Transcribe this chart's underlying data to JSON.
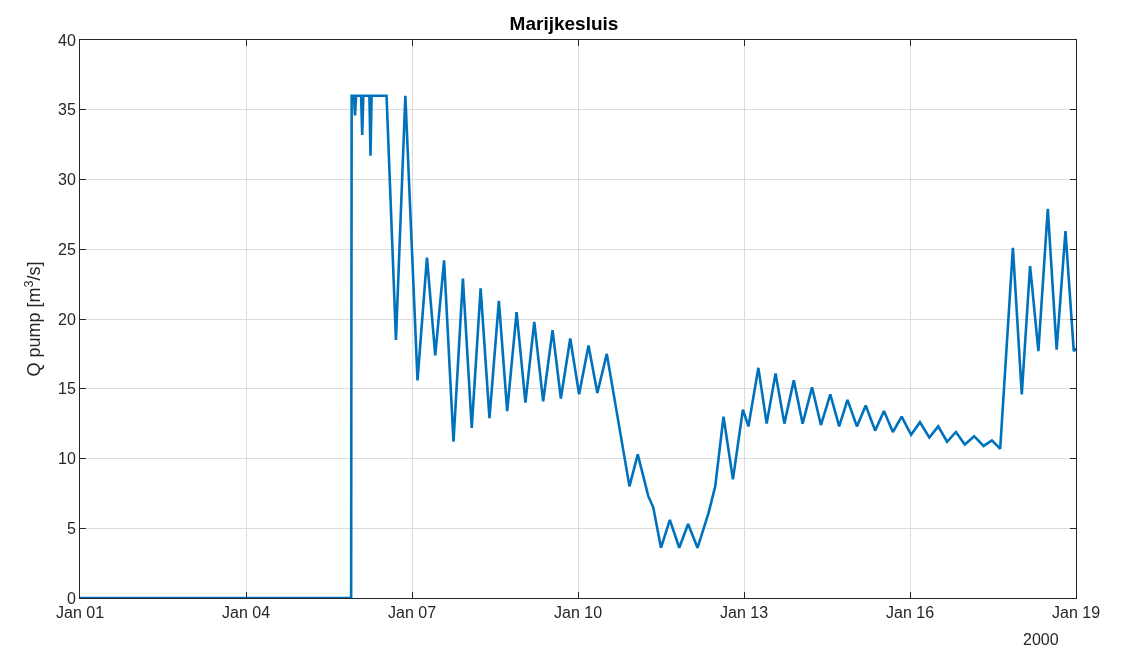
{
  "chart_data": {
    "type": "line",
    "title": "Marijkesluis",
    "ylabel": "Q pump [m$^{3}$/s]",
    "annotations": [
      "2000"
    ],
    "x": [
      "2000-01-01T00:00",
      "2000-01-05T21:36",
      "2000-01-05T21:50",
      "2000-01-05T22:48",
      "2000-01-05T23:17",
      "2000-01-05T23:46",
      "2000-01-06T01:55",
      "2000-01-06T02:24",
      "2000-01-06T02:53",
      "2000-01-06T05:31",
      "2000-01-06T06:00",
      "2000-01-06T06:29",
      "2000-01-06T12:58",
      "2000-01-06T17:02",
      "2000-01-06T21:07",
      "2000-01-07T02:24",
      "2000-01-07T06:29",
      "2000-01-07T10:05",
      "2000-01-07T13:55",
      "2000-01-07T18:00",
      "2000-01-07T22:05",
      "2000-01-08T01:55",
      "2000-01-08T05:46",
      "2000-01-08T09:36",
      "2000-01-08T13:41",
      "2000-01-08T17:17",
      "2000-01-08T21:22",
      "2000-01-09T01:12",
      "2000-01-09T05:02",
      "2000-01-09T08:53",
      "2000-01-09T12:58",
      "2000-01-09T16:34",
      "2000-01-09T20:38",
      "2000-01-10T00:29",
      "2000-01-10T04:34",
      "2000-01-10T08:24",
      "2000-01-10T12:29",
      "2000-01-10T22:19",
      "2000-01-11T01:55",
      "2000-01-11T06:29",
      "2000-01-11T08:38",
      "2000-01-11T12:00",
      "2000-01-11T15:50",
      "2000-01-11T19:55",
      "2000-01-11T23:46",
      "2000-01-12T03:50",
      "2000-01-12T08:38",
      "2000-01-12T11:31",
      "2000-01-12T15:07",
      "2000-01-12T19:12",
      "2000-01-12T23:31",
      "2000-01-13T01:55",
      "2000-01-13T06:14",
      "2000-01-13T09:50",
      "2000-01-13T13:41",
      "2000-01-13T17:31",
      "2000-01-13T21:36",
      "2000-01-14T01:26",
      "2000-01-14T05:31",
      "2000-01-14T09:22",
      "2000-01-14T13:26",
      "2000-01-14T17:17",
      "2000-01-14T20:53",
      "2000-01-15T00:58",
      "2000-01-15T04:48",
      "2000-01-15T08:53",
      "2000-01-15T12:43",
      "2000-01-15T16:34",
      "2000-01-15T20:24",
      "2000-01-16T00:29",
      "2000-01-16T04:19",
      "2000-01-16T08:24",
      "2000-01-16T12:14",
      "2000-01-16T16:05",
      "2000-01-16T19:55",
      "2000-01-16T23:46",
      "2000-01-17T03:50",
      "2000-01-17T07:55",
      "2000-01-17T11:31",
      "2000-01-17T15:07",
      "2000-01-17T20:38",
      "2000-01-18T00:29",
      "2000-01-18T04:05",
      "2000-01-18T07:41",
      "2000-01-18T11:46",
      "2000-01-18T15:36",
      "2000-01-18T19:26",
      "2000-01-18T23:02",
      "2000-01-19T00:00"
    ],
    "series": [
      {
        "color": "#0072bd",
        "values": [
          0,
          0,
          36,
          36,
          34.6,
          36,
          36,
          33.2,
          36,
          36,
          31.7,
          36,
          36,
          18.5,
          36,
          15.6,
          24.4,
          17.4,
          24.2,
          11.2,
          22.9,
          12.2,
          22.2,
          12.9,
          21.3,
          13.4,
          20.5,
          14.0,
          19.8,
          14.1,
          19.2,
          14.3,
          18.6,
          14.6,
          18.1,
          14.7,
          17.5,
          8.0,
          10.3,
          7.3,
          6.5,
          3.6,
          5.6,
          3.6,
          5.3,
          3.6,
          6.1,
          8.0,
          13.0,
          8.5,
          13.5,
          12.3,
          16.5,
          12.5,
          16.1,
          12.5,
          15.6,
          12.5,
          15.1,
          12.4,
          14.6,
          12.3,
          14.2,
          12.3,
          13.8,
          12.0,
          13.4,
          11.9,
          13.0,
          11.7,
          12.6,
          11.5,
          12.3,
          11.2,
          11.9,
          11.0,
          11.6,
          10.9,
          11.3,
          10.7,
          25.1,
          14.6,
          23.8,
          17.7,
          27.9,
          17.8,
          26.3,
          17.7,
          17.9
        ]
      }
    ],
    "xlim": [
      "2000-01-01",
      "2000-01-19"
    ],
    "xticks": [
      {
        "value": "2000-01-01",
        "label": "Jan 01"
      },
      {
        "value": "2000-01-04",
        "label": "Jan 04"
      },
      {
        "value": "2000-01-07",
        "label": "Jan 07"
      },
      {
        "value": "2000-01-10",
        "label": "Jan 10"
      },
      {
        "value": "2000-01-13",
        "label": "Jan 13"
      },
      {
        "value": "2000-01-16",
        "label": "Jan 16"
      },
      {
        "value": "2000-01-19",
        "label": "Jan 19"
      }
    ],
    "ylim": [
      0,
      40
    ],
    "yticks": [
      0,
      5,
      10,
      15,
      20,
      25,
      30,
      35,
      40
    ],
    "grid": true,
    "line_style": "solid",
    "marker": "none"
  }
}
